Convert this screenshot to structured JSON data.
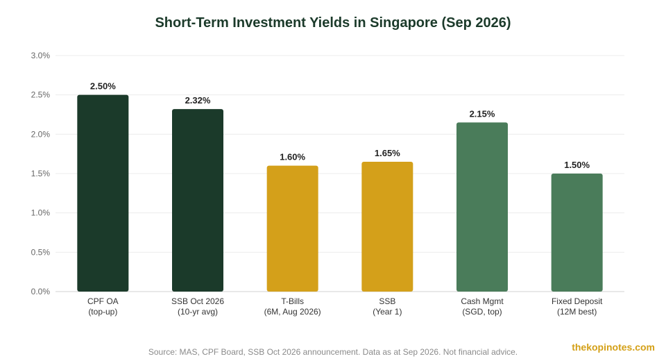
{
  "chart_data": {
    "type": "bar",
    "title": "Short-Term Investment Yields in Singapore (Sep 2026)",
    "categories": [
      [
        "CPF OA",
        "(top-up)"
      ],
      [
        "SSB Oct 2026",
        "(10-yr avg)"
      ],
      [
        "T-Bills",
        "(6M, Aug 2026)"
      ],
      [
        "SSB",
        "(Year 1)"
      ],
      [
        "Cash Mgmt",
        "(SGD, top)"
      ],
      [
        "Fixed Deposit",
        "(12M best)"
      ]
    ],
    "values": [
      2.5,
      2.32,
      1.6,
      1.65,
      2.15,
      1.5
    ],
    "value_labels": [
      "2.50%",
      "2.32%",
      "1.60%",
      "1.65%",
      "2.15%",
      "1.50%"
    ],
    "bar_colors": [
      "#1b3a2a",
      "#1b3a2a",
      "#d4a01a",
      "#d4a01a",
      "#4a7c5a",
      "#4a7c5a"
    ],
    "ylim": [
      0,
      3.0
    ],
    "yticks": [
      0,
      0.5,
      1.0,
      1.5,
      2.0,
      2.5,
      3.0
    ],
    "ytick_labels": [
      "0.0%",
      "0.5%",
      "1.0%",
      "1.5%",
      "2.0%",
      "2.5%",
      "3.0%"
    ],
    "grid": true,
    "xlabel": "",
    "ylabel": ""
  },
  "footer": {
    "source": "Source: MAS, CPF Board, SSB Oct 2026 announcement. Data as at Sep 2026. Not financial advice.",
    "brand": "thekopinotes.com"
  }
}
